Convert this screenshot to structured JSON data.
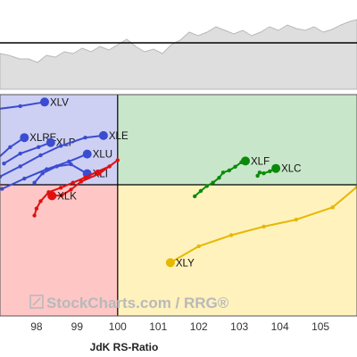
{
  "chart_data": {
    "type": "scatter",
    "variant": "relative-rotation-graph",
    "title": "",
    "xlabel": "JdK RS-Ratio",
    "ylabel": "",
    "xlim": [
      97.1,
      105.9
    ],
    "ylim": [
      96.8,
      102.2
    ],
    "center": [
      100,
      100
    ],
    "x_ticks": [
      98,
      99,
      100,
      101,
      102,
      103,
      104,
      105
    ],
    "grid": false,
    "watermark": "StockCharts.com / RRG®",
    "quadrant_colors": {
      "leading": "#c8e6c9",
      "weakening": "#fff2bd",
      "lagging": "#ffc6c6",
      "improving": "#cdd0f3"
    },
    "series": [
      {
        "name": "XLV",
        "color": "#3b4cd1",
        "points": [
          [
            97.05,
            101.85
          ],
          [
            97.6,
            101.92
          ],
          [
            98.2,
            102.02
          ]
        ]
      },
      {
        "name": "XLRE",
        "color": "#3b4cd1",
        "points": [
          [
            97.05,
            100.65
          ],
          [
            97.35,
            100.92
          ],
          [
            97.7,
            101.15
          ]
        ]
      },
      {
        "name": "XLP",
        "color": "#3b4cd1",
        "points": [
          [
            97.2,
            100.52
          ],
          [
            97.6,
            100.76
          ],
          [
            98.05,
            100.92
          ],
          [
            98.35,
            101.03
          ]
        ]
      },
      {
        "name": "XLE",
        "color": "#3b4cd1",
        "points": [
          [
            97.1,
            100.2
          ],
          [
            97.6,
            100.45
          ],
          [
            98.1,
            100.72
          ],
          [
            98.6,
            100.95
          ],
          [
            99.2,
            101.15
          ],
          [
            99.65,
            101.2
          ]
        ]
      },
      {
        "name": "XLU",
        "color": "#3b4cd1",
        "points": [
          [
            97.15,
            99.9
          ],
          [
            97.7,
            100.15
          ],
          [
            98.25,
            100.38
          ],
          [
            98.8,
            100.57
          ],
          [
            99.25,
            100.75
          ]
        ]
      },
      {
        "name": "XLI",
        "color": "#3b4cd1",
        "points": [
          [
            97.95,
            100.05
          ],
          [
            98.15,
            100.28
          ],
          [
            98.5,
            100.45
          ],
          [
            98.85,
            100.5
          ],
          [
            99.25,
            100.27
          ]
        ]
      },
      {
        "name": "XLK",
        "color": "#e01010",
        "points": [
          [
            97.95,
            99.25
          ],
          [
            98.0,
            99.42
          ],
          [
            98.1,
            99.6
          ],
          [
            98.3,
            99.82
          ],
          [
            98.6,
            99.93
          ],
          [
            98.9,
            100.05
          ],
          [
            99.2,
            100.18
          ],
          [
            99.5,
            100.32
          ],
          [
            99.8,
            100.45
          ],
          [
            100.0,
            100.6
          ],
          [
            99.55,
            100.27
          ],
          [
            99.1,
            100.08
          ],
          [
            98.85,
            99.88
          ],
          [
            98.62,
            99.74
          ],
          [
            98.38,
            99.73
          ]
        ]
      },
      {
        "name": "XLF",
        "color": "#0a8a0a",
        "points": [
          [
            101.9,
            99.72
          ],
          [
            102.05,
            99.85
          ],
          [
            102.2,
            99.97
          ],
          [
            102.35,
            100.05
          ],
          [
            102.5,
            100.17
          ],
          [
            102.6,
            100.3
          ],
          [
            102.75,
            100.35
          ],
          [
            102.9,
            100.44
          ],
          [
            103.05,
            100.55
          ],
          [
            103.15,
            100.58
          ]
        ]
      },
      {
        "name": "XLC",
        "color": "#0a8a0a",
        "points": [
          [
            103.45,
            100.22
          ],
          [
            103.5,
            100.3
          ],
          [
            103.6,
            100.28
          ],
          [
            103.75,
            100.33
          ],
          [
            103.9,
            100.4
          ]
        ]
      },
      {
        "name": "XLY",
        "color": "#e6b800",
        "points": [
          [
            105.9,
            99.95
          ],
          [
            105.3,
            99.45
          ],
          [
            104.4,
            99.15
          ],
          [
            103.6,
            98.98
          ],
          [
            102.8,
            98.77
          ],
          [
            102.0,
            98.5
          ],
          [
            101.3,
            98.1
          ]
        ]
      }
    ]
  }
}
